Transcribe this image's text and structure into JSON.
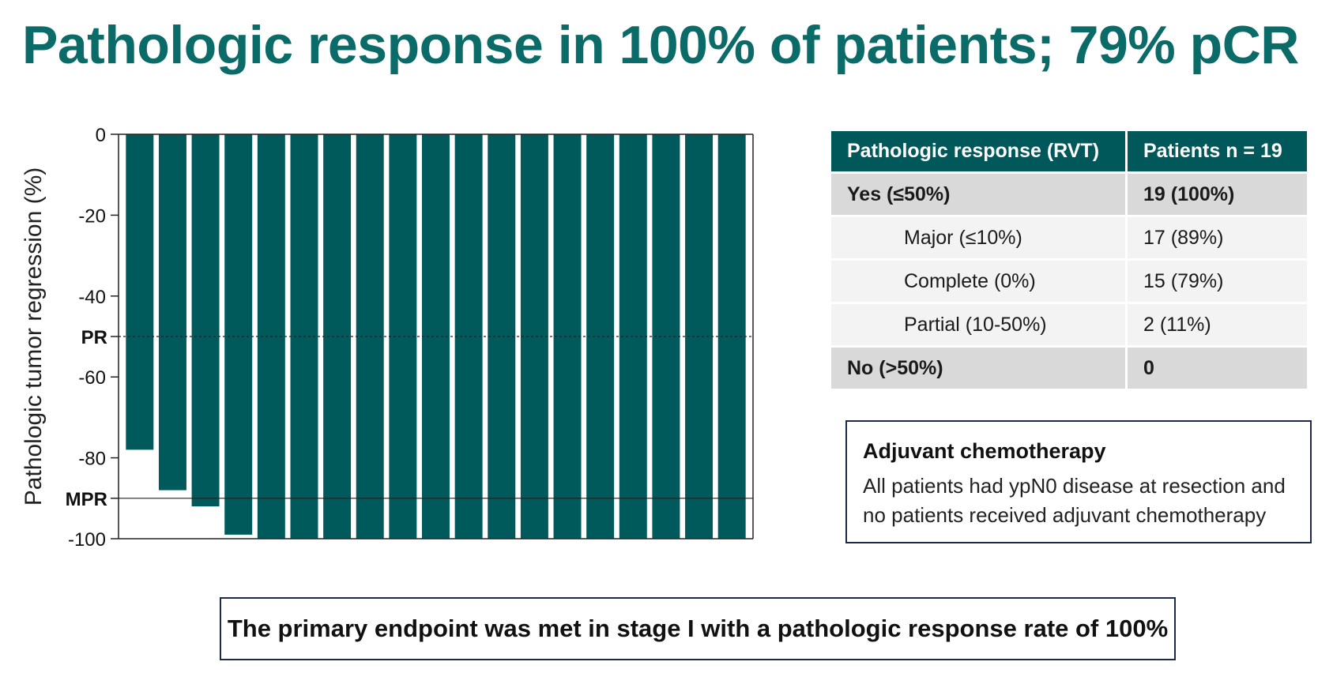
{
  "title": "Pathologic response in 100% of patients; 79% pCR",
  "chart_data": {
    "type": "bar",
    "ylabel": "Pathologic tumor regression (%)",
    "ylim": [
      -100,
      0
    ],
    "yticks": [
      {
        "value": 0,
        "label": "0"
      },
      {
        "value": -20,
        "label": "-20"
      },
      {
        "value": -40,
        "label": "-40"
      },
      {
        "value": -60,
        "label": "-60"
      },
      {
        "value": -80,
        "label": "-80"
      },
      {
        "value": -100,
        "label": "-100"
      }
    ],
    "reference_lines": [
      {
        "value": -50,
        "label": "PR",
        "style": "dashed"
      },
      {
        "value": -90,
        "label": "MPR",
        "style": "solid"
      }
    ],
    "values": [
      -78,
      -88,
      -92,
      -99,
      -100,
      -100,
      -100,
      -100,
      -100,
      -100,
      -100,
      -100,
      -100,
      -100,
      -100,
      -100,
      -100,
      -100,
      -100
    ],
    "bar_color": "#005a5c"
  },
  "table": {
    "headers": [
      "Pathologic response (RVT)",
      "Patients n = 19"
    ],
    "rows": [
      {
        "label": "Yes (≤50%)",
        "value": "19 (100%)",
        "level": "main"
      },
      {
        "label": "Major (≤10%)",
        "value": "17 (89%)",
        "level": "sub"
      },
      {
        "label": "Complete (0%)",
        "value": "15 (79%)",
        "level": "sub"
      },
      {
        "label": "Partial (10-50%)",
        "value": "2 (11%)",
        "level": "sub"
      },
      {
        "label": "No (>50%)",
        "value": "0",
        "level": "main"
      }
    ]
  },
  "adjuvant": {
    "title": "Adjuvant chemotherapy",
    "text": "All patients had ypN0 disease at resection and no patients received adjuvant chemotherapy"
  },
  "conclusion": "The primary endpoint was met in stage I with a pathologic response rate of 100%"
}
